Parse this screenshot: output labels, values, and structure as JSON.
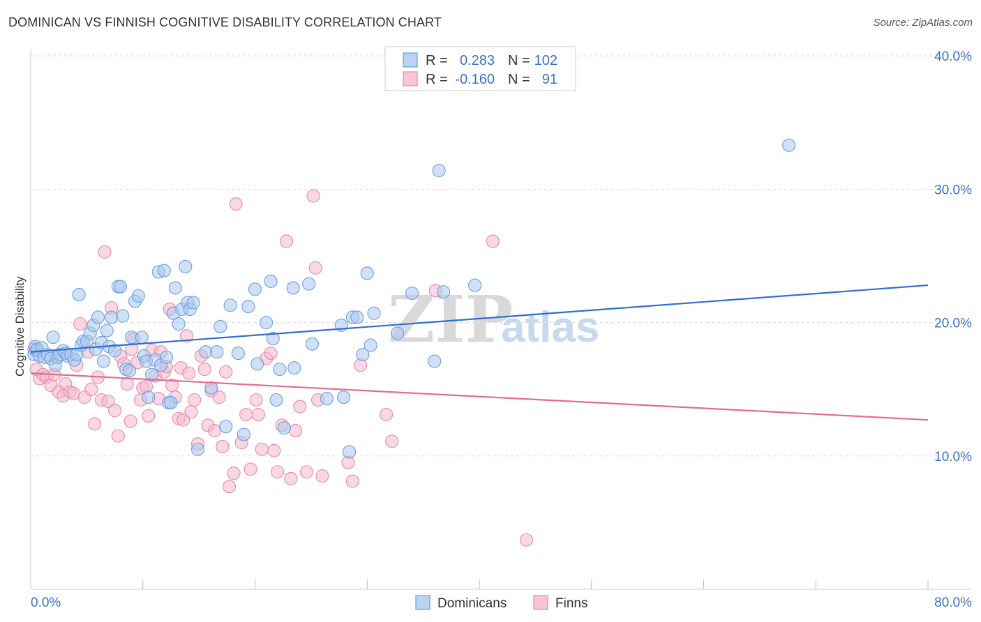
{
  "title": "DOMINICAN VS FINNISH COGNITIVE DISABILITY CORRELATION CHART",
  "source": "Source: ZipAtlas.com",
  "watermark": {
    "zip": "ZIP",
    "atlas": "atlas"
  },
  "colors": {
    "dominicans_fill": "#a9c8f0",
    "dominicans_stroke": "#6b9fdc",
    "dominicans_line": "#2f6fcf",
    "finns_fill": "#f5b8cc",
    "finns_stroke": "#e68aa8",
    "finns_line": "#e36a93",
    "tick_text": "#3a72c8",
    "grid": "#dddddd"
  },
  "legend": {
    "row1": {
      "r_label": "R =",
      "r_value": "0.283",
      "n_label": "N =",
      "n_value": "102"
    },
    "row2": {
      "r_label": "R =",
      "r_value": "-0.160",
      "n_label": "N =",
      "n_value": "91"
    }
  },
  "bottom_legend": {
    "series1": "Dominicans",
    "series2": "Finns"
  },
  "chart_data": {
    "type": "scatter",
    "title": "DOMINICAN VS FINNISH COGNITIVE DISABILITY CORRELATION CHART",
    "xlabel": "",
    "ylabel": "Cognitive Disability",
    "xlim": [
      0,
      80
    ],
    "ylim": [
      0,
      42
    ],
    "x_tick_labels": [
      "0.0%",
      "80.0%"
    ],
    "y_ticks": [
      10,
      20,
      30,
      40
    ],
    "y_tick_labels": [
      "10.0%",
      "20.0%",
      "30.0%",
      "40.0%"
    ],
    "grid": true,
    "legend_position": "top-center",
    "series": [
      {
        "name": "Dominicans",
        "r": 0.283,
        "n": 102,
        "trend": [
          [
            0,
            17.8
          ],
          [
            80,
            22.8
          ]
        ],
        "points": [
          [
            0.3,
            17.6
          ],
          [
            0.4,
            18.2
          ],
          [
            0.5,
            17.9
          ],
          [
            0.6,
            18.0
          ],
          [
            0.8,
            17.5
          ],
          [
            1.0,
            18.1
          ],
          [
            1.2,
            17.4
          ],
          [
            1.5,
            17.6
          ],
          [
            1.8,
            17.3
          ],
          [
            2.0,
            18.9
          ],
          [
            2.2,
            16.8
          ],
          [
            2.4,
            17.4
          ],
          [
            2.6,
            17.6
          ],
          [
            2.9,
            17.9
          ],
          [
            3.1,
            17.7
          ],
          [
            3.3,
            17.5
          ],
          [
            3.6,
            17.6
          ],
          [
            3.9,
            17.2
          ],
          [
            4.1,
            17.6
          ],
          [
            4.3,
            22.1
          ],
          [
            4.5,
            18.3
          ],
          [
            4.7,
            18.6
          ],
          [
            5.0,
            18.6
          ],
          [
            5.3,
            19.2
          ],
          [
            5.6,
            19.8
          ],
          [
            5.8,
            18.0
          ],
          [
            6.0,
            20.4
          ],
          [
            6.3,
            18.5
          ],
          [
            6.5,
            17.1
          ],
          [
            6.8,
            19.4
          ],
          [
            7.0,
            18.2
          ],
          [
            7.2,
            20.4
          ],
          [
            7.5,
            17.9
          ],
          [
            7.8,
            22.7
          ],
          [
            8.0,
            22.7
          ],
          [
            8.2,
            20.5
          ],
          [
            8.5,
            16.5
          ],
          [
            8.8,
            16.4
          ],
          [
            9.0,
            18.9
          ],
          [
            9.3,
            21.6
          ],
          [
            9.6,
            22.0
          ],
          [
            9.9,
            18.9
          ],
          [
            10.1,
            17.5
          ],
          [
            10.3,
            17.1
          ],
          [
            10.5,
            14.4
          ],
          [
            10.8,
            16.1
          ],
          [
            11.1,
            17.2
          ],
          [
            11.4,
            23.8
          ],
          [
            11.6,
            16.8
          ],
          [
            11.9,
            23.9
          ],
          [
            12.1,
            17.4
          ],
          [
            12.3,
            14.0
          ],
          [
            12.5,
            14.0
          ],
          [
            12.7,
            20.7
          ],
          [
            12.9,
            22.6
          ],
          [
            13.2,
            19.9
          ],
          [
            13.5,
            21.0
          ],
          [
            13.8,
            24.2
          ],
          [
            14.0,
            21.5
          ],
          [
            14.2,
            21.0
          ],
          [
            14.5,
            21.5
          ],
          [
            14.9,
            10.5
          ],
          [
            15.6,
            17.8
          ],
          [
            16.1,
            15.1
          ],
          [
            16.6,
            17.8
          ],
          [
            16.9,
            19.7
          ],
          [
            17.4,
            12.2
          ],
          [
            17.8,
            21.3
          ],
          [
            18.5,
            17.7
          ],
          [
            19.0,
            11.6
          ],
          [
            19.4,
            21.2
          ],
          [
            20.0,
            22.5
          ],
          [
            20.2,
            16.9
          ],
          [
            21.0,
            20.0
          ],
          [
            21.4,
            23.1
          ],
          [
            21.6,
            18.8
          ],
          [
            21.9,
            14.2
          ],
          [
            22.2,
            16.5
          ],
          [
            22.6,
            12.1
          ],
          [
            23.5,
            16.6
          ],
          [
            23.4,
            22.6
          ],
          [
            24.8,
            22.9
          ],
          [
            25.1,
            18.4
          ],
          [
            26.4,
            14.3
          ],
          [
            27.7,
            19.8
          ],
          [
            27.9,
            14.4
          ],
          [
            28.4,
            10.3
          ],
          [
            28.7,
            20.4
          ],
          [
            29.1,
            20.4
          ],
          [
            29.6,
            17.6
          ],
          [
            30.0,
            23.7
          ],
          [
            30.3,
            18.3
          ],
          [
            30.6,
            20.7
          ],
          [
            32.7,
            19.2
          ],
          [
            34.0,
            22.2
          ],
          [
            36.0,
            17.1
          ],
          [
            36.4,
            31.4
          ],
          [
            36.8,
            22.3
          ],
          [
            39.6,
            22.8
          ],
          [
            67.6,
            33.3
          ]
        ]
      },
      {
        "name": "Finns",
        "r": -0.16,
        "n": 91,
        "trend": [
          [
            0,
            16.2
          ],
          [
            80,
            12.7
          ]
        ],
        "points": [
          [
            0.3,
            18.0
          ],
          [
            0.5,
            16.5
          ],
          [
            0.8,
            15.8
          ],
          [
            1.1,
            16.1
          ],
          [
            1.4,
            15.9
          ],
          [
            1.8,
            15.3
          ],
          [
            2.1,
            16.1
          ],
          [
            2.5,
            14.8
          ],
          [
            2.9,
            14.5
          ],
          [
            3.1,
            15.4
          ],
          [
            3.5,
            14.8
          ],
          [
            3.8,
            14.7
          ],
          [
            4.1,
            16.8
          ],
          [
            4.4,
            19.9
          ],
          [
            4.8,
            14.4
          ],
          [
            5.1,
            17.8
          ],
          [
            5.4,
            15.0
          ],
          [
            5.7,
            12.4
          ],
          [
            6.0,
            15.9
          ],
          [
            6.3,
            14.2
          ],
          [
            6.6,
            25.3
          ],
          [
            6.9,
            14.1
          ],
          [
            7.2,
            21.1
          ],
          [
            7.5,
            13.4
          ],
          [
            7.8,
            11.5
          ],
          [
            8.0,
            17.5
          ],
          [
            8.3,
            16.9
          ],
          [
            8.6,
            15.4
          ],
          [
            8.9,
            12.6
          ],
          [
            9.0,
            18.0
          ],
          [
            9.2,
            18.8
          ],
          [
            9.5,
            17.0
          ],
          [
            9.8,
            14.2
          ],
          [
            10.0,
            15.1
          ],
          [
            10.3,
            15.2
          ],
          [
            10.5,
            13.0
          ],
          [
            10.8,
            17.9
          ],
          [
            11.1,
            16.0
          ],
          [
            11.4,
            14.3
          ],
          [
            11.6,
            17.8
          ],
          [
            11.9,
            16.3
          ],
          [
            12.1,
            16.7
          ],
          [
            12.4,
            21.0
          ],
          [
            12.6,
            15.3
          ],
          [
            12.9,
            14.4
          ],
          [
            13.2,
            12.8
          ],
          [
            13.4,
            16.6
          ],
          [
            13.6,
            12.7
          ],
          [
            13.9,
            19.0
          ],
          [
            14.1,
            16.2
          ],
          [
            14.3,
            13.3
          ],
          [
            14.6,
            14.2
          ],
          [
            14.9,
            10.9
          ],
          [
            15.2,
            17.5
          ],
          [
            15.5,
            16.5
          ],
          [
            15.8,
            12.3
          ],
          [
            16.1,
            14.9
          ],
          [
            16.4,
            11.9
          ],
          [
            16.8,
            14.4
          ],
          [
            17.1,
            10.7
          ],
          [
            17.4,
            16.3
          ],
          [
            17.7,
            7.7
          ],
          [
            18.1,
            8.7
          ],
          [
            18.3,
            28.9
          ],
          [
            18.8,
            11.0
          ],
          [
            19.2,
            13.1
          ],
          [
            19.6,
            9.0
          ],
          [
            20.1,
            14.2
          ],
          [
            20.3,
            13.1
          ],
          [
            20.6,
            10.5
          ],
          [
            21.0,
            17.3
          ],
          [
            21.4,
            17.7
          ],
          [
            21.7,
            10.4
          ],
          [
            22.0,
            8.8
          ],
          [
            22.4,
            12.3
          ],
          [
            22.8,
            26.1
          ],
          [
            23.2,
            8.3
          ],
          [
            23.6,
            11.9
          ],
          [
            24.0,
            13.7
          ],
          [
            24.6,
            8.8
          ],
          [
            25.2,
            29.5
          ],
          [
            25.4,
            24.1
          ],
          [
            25.6,
            14.2
          ],
          [
            26.0,
            8.5
          ],
          [
            28.3,
            9.5
          ],
          [
            28.7,
            8.1
          ],
          [
            29.4,
            16.8
          ],
          [
            31.7,
            13.1
          ],
          [
            32.2,
            11.1
          ],
          [
            36.1,
            22.4
          ],
          [
            41.2,
            26.1
          ],
          [
            44.2,
            3.7
          ]
        ]
      }
    ]
  }
}
